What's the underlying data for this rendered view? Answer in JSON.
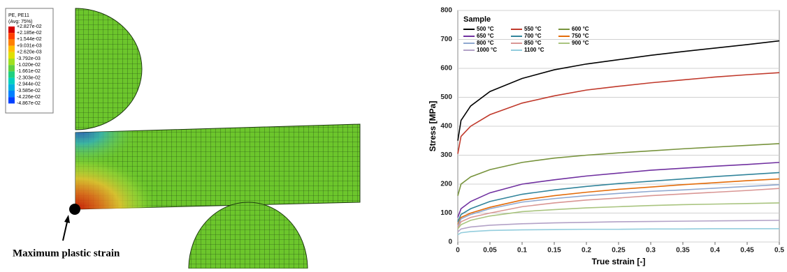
{
  "contour": {
    "title": "PE, PE11",
    "subtitle": "(Avg: 75%)",
    "levels": [
      "+2.827e-02",
      "+2.185e-02",
      "+1.544e-02",
      "+9.031e-03",
      "+2.620e-03",
      "-3.792e-03",
      "-1.020e-02",
      "-1.661e-02",
      "-2.303e-02",
      "-2.944e-02",
      "-3.585e-02",
      "-4.226e-02",
      "-4.867e-02"
    ]
  },
  "annotation": "Maximum plastic strain",
  "chart_data": {
    "type": "line",
    "xlabel": "True strain [-]",
    "ylabel": "Stress [MPa]",
    "legend_title": "Sample",
    "legend": "upper left",
    "grid": true,
    "xlim": [
      0,
      0.5
    ],
    "xticks": [
      0,
      0.05,
      0.1,
      0.15,
      0.2,
      0.25,
      0.3,
      0.35,
      0.4,
      0.45,
      0.5
    ],
    "ylim": [
      0,
      800
    ],
    "yticks": [
      0,
      100,
      200,
      300,
      400,
      500,
      600,
      700,
      800
    ],
    "x": [
      0,
      0.005,
      0.02,
      0.05,
      0.1,
      0.15,
      0.2,
      0.25,
      0.3,
      0.35,
      0.4,
      0.45,
      0.5
    ],
    "series": [
      {
        "name": "500 °C",
        "color": "#000000",
        "values": [
          350,
          420,
          470,
          520,
          565,
          595,
          615,
          630,
          645,
          658,
          670,
          682,
          695
        ]
      },
      {
        "name": "550 °C",
        "color": "#c0392b",
        "values": [
          305,
          365,
          400,
          440,
          480,
          505,
          525,
          538,
          550,
          560,
          570,
          578,
          585
        ]
      },
      {
        "name": "600 °C",
        "color": "#77933c",
        "values": [
          160,
          200,
          225,
          250,
          275,
          290,
          300,
          308,
          315,
          322,
          328,
          334,
          340
        ]
      },
      {
        "name": "650 °C",
        "color": "#7030a0",
        "values": [
          85,
          115,
          140,
          170,
          200,
          215,
          228,
          238,
          248,
          255,
          262,
          268,
          275
        ]
      },
      {
        "name": "700 °C",
        "color": "#31849b",
        "values": [
          70,
          95,
          115,
          140,
          165,
          180,
          192,
          202,
          210,
          218,
          226,
          233,
          240
        ]
      },
      {
        "name": "750 °C",
        "color": "#e46c0a",
        "values": [
          60,
          85,
          100,
          120,
          145,
          160,
          172,
          182,
          190,
          198,
          205,
          212,
          218
        ]
      },
      {
        "name": "800 °C",
        "color": "#8fa8d0",
        "values": [
          55,
          80,
          95,
          115,
          138,
          150,
          160,
          168,
          175,
          180,
          186,
          192,
          198
        ]
      },
      {
        "name": "850 °C",
        "color": "#d99694",
        "values": [
          50,
          70,
          85,
          100,
          122,
          135,
          145,
          152,
          160,
          166,
          172,
          178,
          185
        ]
      },
      {
        "name": "900 °C",
        "color": "#a9c47f",
        "values": [
          45,
          60,
          75,
          90,
          105,
          112,
          118,
          122,
          126,
          129,
          131,
          133,
          135
        ]
      },
      {
        "name": "1000 °C",
        "color": "#b3a2c7",
        "values": [
          35,
          45,
          52,
          58,
          63,
          66,
          68,
          70,
          71,
          72,
          73,
          74,
          75
        ]
      },
      {
        "name": "1100 °C",
        "color": "#93cddd",
        "values": [
          25,
          32,
          36,
          40,
          42,
          43,
          44,
          44,
          45,
          45,
          46,
          46,
          46
        ]
      }
    ]
  }
}
